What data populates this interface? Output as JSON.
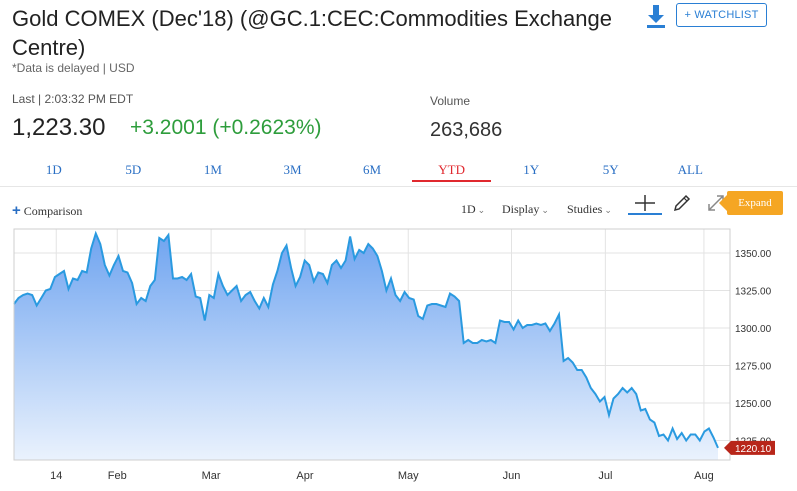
{
  "header": {
    "title": "Gold COMEX (Dec'18) (@GC.1:CEC:Commodities Exchange Centre)",
    "subtitle": "*Data is delayed | USD",
    "watchlist_label": "+ WATCHLIST",
    "download_icon": "download-icon"
  },
  "quote": {
    "last_label": "Last | 2:03:32 PM EDT",
    "last_price": "1,223.30",
    "change": "+3.2001 (+0.2623%)",
    "volume_label": "Volume",
    "volume": "263,686",
    "change_color": "#2e9d3c"
  },
  "tabs": [
    {
      "label": "1D",
      "active": false
    },
    {
      "label": "5D",
      "active": false
    },
    {
      "label": "1M",
      "active": false
    },
    {
      "label": "3M",
      "active": false
    },
    {
      "label": "6M",
      "active": false
    },
    {
      "label": "YTD",
      "active": true
    },
    {
      "label": "1Y",
      "active": false
    },
    {
      "label": "5Y",
      "active": false
    },
    {
      "label": "ALL",
      "active": false
    }
  ],
  "toolbar": {
    "comparison_label": "Comparison",
    "interval_label": "1D",
    "display_label": "Display",
    "studies_label": "Studies",
    "expand_label": "Expand",
    "tools": [
      "crosshair-icon",
      "pencil-icon",
      "expand-arrows-icon"
    ]
  },
  "chart_data": {
    "type": "area",
    "series_color": "#2a9ae0",
    "fill_top": "#6fa4f0",
    "fill_bottom": "#eaf2fd",
    "ylim": [
      1212,
      1366
    ],
    "y_ticks": [
      1225,
      1250,
      1275,
      1300,
      1325,
      1350
    ],
    "y_tick_labels": [
      "1225.00",
      "1250.00",
      "1275.00",
      "1300.00",
      "1325.00",
      "1350.00"
    ],
    "x_ticks": [
      {
        "label": "14",
        "x": 9
      },
      {
        "label": "Feb",
        "x": 22
      },
      {
        "label": "Mar",
        "x": 42
      },
      {
        "label": "Apr",
        "x": 62
      },
      {
        "label": "May",
        "x": 84
      },
      {
        "label": "Jun",
        "x": 106
      },
      {
        "label": "Jul",
        "x": 126
      },
      {
        "label": "Aug",
        "x": 147
      }
    ],
    "x_max": 150,
    "last_value": 1220.1,
    "last_value_label": "1220.10",
    "points": [
      [
        0,
        1316
      ],
      [
        1,
        1320
      ],
      [
        2,
        1322
      ],
      [
        3,
        1323
      ],
      [
        4,
        1322
      ],
      [
        5,
        1315
      ],
      [
        6,
        1320
      ],
      [
        7,
        1325
      ],
      [
        8,
        1326
      ],
      [
        9,
        1334
      ],
      [
        10,
        1336
      ],
      [
        11,
        1338
      ],
      [
        12,
        1326
      ],
      [
        13,
        1333
      ],
      [
        14,
        1332
      ],
      [
        15,
        1338
      ],
      [
        16,
        1337
      ],
      [
        17,
        1353
      ],
      [
        18,
        1363
      ],
      [
        19,
        1356
      ],
      [
        20,
        1342
      ],
      [
        21,
        1335
      ],
      [
        22,
        1342
      ],
      [
        23,
        1348
      ],
      [
        24,
        1338
      ],
      [
        25,
        1337
      ],
      [
        26,
        1330
      ],
      [
        27,
        1316
      ],
      [
        28,
        1320
      ],
      [
        29,
        1318
      ],
      [
        30,
        1328
      ],
      [
        31,
        1332
      ],
      [
        32,
        1360
      ],
      [
        33,
        1358
      ],
      [
        34,
        1362
      ],
      [
        35,
        1333
      ],
      [
        36,
        1333
      ],
      [
        37,
        1334
      ],
      [
        38,
        1332
      ],
      [
        39,
        1336
      ],
      [
        40,
        1321
      ],
      [
        41,
        1320
      ],
      [
        42,
        1305
      ],
      [
        43,
        1322
      ],
      [
        44,
        1320
      ],
      [
        45,
        1336
      ],
      [
        46,
        1328
      ],
      [
        47,
        1322
      ],
      [
        48,
        1325
      ],
      [
        49,
        1328
      ],
      [
        50,
        1318
      ],
      [
        51,
        1322
      ],
      [
        52,
        1324
      ],
      [
        53,
        1318
      ],
      [
        54,
        1313
      ],
      [
        55,
        1320
      ],
      [
        56,
        1314
      ],
      [
        57,
        1329
      ],
      [
        58,
        1338
      ],
      [
        59,
        1350
      ],
      [
        60,
        1355
      ],
      [
        61,
        1340
      ],
      [
        62,
        1328
      ],
      [
        63,
        1334
      ],
      [
        64,
        1345
      ],
      [
        65,
        1342
      ],
      [
        66,
        1331
      ],
      [
        67,
        1337
      ],
      [
        68,
        1336
      ],
      [
        69,
        1330
      ],
      [
        70,
        1342
      ],
      [
        71,
        1345
      ],
      [
        72,
        1340
      ],
      [
        73,
        1345
      ],
      [
        74,
        1361
      ],
      [
        75,
        1346
      ],
      [
        76,
        1352
      ],
      [
        77,
        1350
      ],
      [
        78,
        1356
      ],
      [
        79,
        1353
      ],
      [
        80,
        1348
      ],
      [
        81,
        1338
      ],
      [
        82,
        1325
      ],
      [
        83,
        1333
      ],
      [
        84,
        1322
      ],
      [
        85,
        1318
      ],
      [
        86,
        1324
      ],
      [
        87,
        1320
      ],
      [
        88,
        1319
      ],
      [
        89,
        1308
      ],
      [
        90,
        1306
      ],
      [
        91,
        1315
      ],
      [
        92,
        1316
      ],
      [
        93,
        1316
      ],
      [
        94,
        1315
      ],
      [
        95,
        1314
      ],
      [
        96,
        1323
      ],
      [
        97,
        1321
      ],
      [
        98,
        1318
      ],
      [
        99,
        1290
      ],
      [
        100,
        1292
      ],
      [
        101,
        1290
      ],
      [
        102,
        1290
      ],
      [
        103,
        1292
      ],
      [
        104,
        1291
      ],
      [
        105,
        1292
      ],
      [
        106,
        1290
      ],
      [
        107,
        1305
      ],
      [
        108,
        1304
      ],
      [
        109,
        1304
      ],
      [
        110,
        1299
      ],
      [
        111,
        1305
      ],
      [
        112,
        1300
      ],
      [
        113,
        1302
      ],
      [
        114,
        1302
      ],
      [
        115,
        1303
      ],
      [
        116,
        1302
      ],
      [
        117,
        1303
      ],
      [
        118,
        1298
      ],
      [
        119,
        1303
      ],
      [
        120,
        1309
      ],
      [
        121,
        1278
      ],
      [
        122,
        1280
      ],
      [
        123,
        1277
      ],
      [
        124,
        1272
      ],
      [
        125,
        1272
      ],
      [
        126,
        1267
      ],
      [
        127,
        1260
      ],
      [
        128,
        1256
      ],
      [
        129,
        1251
      ],
      [
        130,
        1254
      ],
      [
        131,
        1242
      ],
      [
        132,
        1253
      ],
      [
        133,
        1256
      ],
      [
        134,
        1260
      ],
      [
        135,
        1257
      ],
      [
        136,
        1260
      ],
      [
        137,
        1256
      ],
      [
        138,
        1245
      ],
      [
        139,
        1246
      ],
      [
        140,
        1239
      ],
      [
        141,
        1237
      ],
      [
        142,
        1228
      ],
      [
        143,
        1229
      ],
      [
        144,
        1225
      ],
      [
        145,
        1233
      ],
      [
        146,
        1226
      ],
      [
        147,
        1230
      ],
      [
        148,
        1225
      ],
      [
        149,
        1229
      ],
      [
        150,
        1229
      ],
      [
        151,
        1225
      ],
      [
        152,
        1231
      ],
      [
        153,
        1233
      ],
      [
        154,
        1227
      ],
      [
        155,
        1220.1
      ]
    ]
  }
}
